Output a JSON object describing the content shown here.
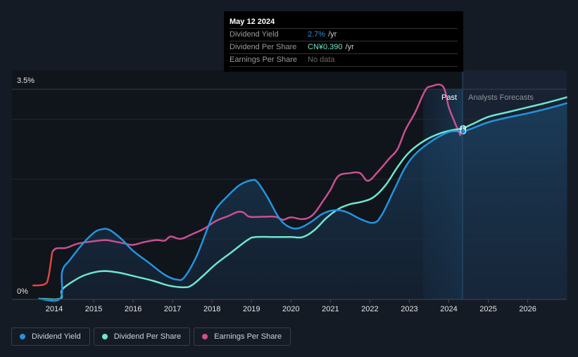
{
  "tooltip": {
    "date": "May 12 2024",
    "rows": [
      {
        "label": "Dividend Yield",
        "value": "2.7%",
        "unit": "/yr",
        "color": "#2394df"
      },
      {
        "label": "Dividend Per Share",
        "value": "CN¥0.390",
        "unit": "/yr",
        "color": "#6ee6cf"
      },
      {
        "label": "Earnings Per Share",
        "value": "No data",
        "unit": "",
        "color": "#6b6b6b"
      }
    ]
  },
  "legend": [
    {
      "label": "Dividend Yield",
      "color": "#2394df"
    },
    {
      "label": "Dividend Per Share",
      "color": "#6ee6cf"
    },
    {
      "label": "Earnings Per Share",
      "color": "#c9508f"
    }
  ],
  "chart_data": {
    "type": "line",
    "title": "",
    "xlabel": "",
    "ylabel": "",
    "x_ticks": [
      "2014",
      "2015",
      "2016",
      "2017",
      "2018",
      "2019",
      "2020",
      "2021",
      "2022",
      "2023",
      "2024",
      "2025",
      "2026"
    ],
    "y_ticks": [
      "0%",
      "3.5%"
    ],
    "ylim": [
      0,
      3.5
    ],
    "xlim": [
      2013.0,
      2027.0
    ],
    "grid": true,
    "legend_position": "bottom",
    "past_label": "Past",
    "forecast_label": "Analysts Forecasts",
    "past_region_start": 2023.35,
    "forecast_start": 2024.36,
    "series": [
      {
        "name": "Dividend Yield",
        "color": "#2394df",
        "unit": "%",
        "points": [
          [
            2013.6,
            0
          ],
          [
            2014.15,
            0
          ],
          [
            2014.2,
            0.45
          ],
          [
            2014.4,
            0.65
          ],
          [
            2014.7,
            0.9
          ],
          [
            2015.0,
            1.1
          ],
          [
            2015.2,
            1.16
          ],
          [
            2015.4,
            1.15
          ],
          [
            2015.7,
            1.0
          ],
          [
            2016.0,
            0.8
          ],
          [
            2016.4,
            0.6
          ],
          [
            2016.8,
            0.4
          ],
          [
            2017.1,
            0.32
          ],
          [
            2017.3,
            0.36
          ],
          [
            2017.6,
            0.7
          ],
          [
            2017.9,
            1.2
          ],
          [
            2018.1,
            1.5
          ],
          [
            2018.4,
            1.72
          ],
          [
            2018.7,
            1.9
          ],
          [
            2019.0,
            1.98
          ],
          [
            2019.15,
            1.95
          ],
          [
            2019.4,
            1.7
          ],
          [
            2019.7,
            1.35
          ],
          [
            2019.95,
            1.2
          ],
          [
            2020.2,
            1.18
          ],
          [
            2020.5,
            1.28
          ],
          [
            2020.8,
            1.42
          ],
          [
            2021.1,
            1.48
          ],
          [
            2021.4,
            1.45
          ],
          [
            2021.8,
            1.32
          ],
          [
            2022.1,
            1.27
          ],
          [
            2022.3,
            1.4
          ],
          [
            2022.6,
            1.8
          ],
          [
            2022.9,
            2.2
          ],
          [
            2023.2,
            2.45
          ],
          [
            2023.6,
            2.65
          ],
          [
            2023.9,
            2.76
          ],
          [
            2024.1,
            2.8
          ],
          [
            2024.36,
            2.8
          ],
          [
            2024.6,
            2.85
          ],
          [
            2025.0,
            2.95
          ],
          [
            2025.5,
            3.03
          ],
          [
            2026.0,
            3.1
          ],
          [
            2026.5,
            3.18
          ],
          [
            2027.0,
            3.27
          ]
        ]
      },
      {
        "name": "Dividend Per Share",
        "color": "#6ee6cf",
        "unit": "CN¥",
        "points": [
          [
            2013.6,
            0
          ],
          [
            2014.15,
            0
          ],
          [
            2014.2,
            0.15
          ],
          [
            2014.5,
            0.3
          ],
          [
            2014.8,
            0.4
          ],
          [
            2015.2,
            0.46
          ],
          [
            2015.6,
            0.44
          ],
          [
            2016.0,
            0.38
          ],
          [
            2016.5,
            0.3
          ],
          [
            2016.9,
            0.22
          ],
          [
            2017.3,
            0.19
          ],
          [
            2017.5,
            0.23
          ],
          [
            2017.8,
            0.4
          ],
          [
            2018.1,
            0.58
          ],
          [
            2018.5,
            0.78
          ],
          [
            2018.9,
            0.98
          ],
          [
            2019.1,
            1.03
          ],
          [
            2019.6,
            1.03
          ],
          [
            2020.0,
            1.03
          ],
          [
            2020.3,
            1.03
          ],
          [
            2020.6,
            1.15
          ],
          [
            2020.9,
            1.35
          ],
          [
            2021.2,
            1.5
          ],
          [
            2021.5,
            1.58
          ],
          [
            2021.8,
            1.62
          ],
          [
            2022.1,
            1.7
          ],
          [
            2022.4,
            1.9
          ],
          [
            2022.7,
            2.2
          ],
          [
            2023.0,
            2.45
          ],
          [
            2023.4,
            2.65
          ],
          [
            2023.8,
            2.77
          ],
          [
            2024.1,
            2.82
          ],
          [
            2024.36,
            2.85
          ],
          [
            2024.6,
            2.92
          ],
          [
            2025.0,
            3.04
          ],
          [
            2025.5,
            3.12
          ],
          [
            2026.0,
            3.2
          ],
          [
            2026.5,
            3.28
          ],
          [
            2027.0,
            3.37
          ]
        ]
      },
      {
        "name": "Earnings Per Share",
        "color": "#c9508f",
        "negative_color": "#e0453f",
        "unit": "CN¥",
        "points": [
          [
            2013.45,
            0.22
          ],
          [
            2013.75,
            0.24
          ],
          [
            2013.85,
            0.35
          ],
          [
            2013.95,
            0.78
          ],
          [
            2014.05,
            0.84
          ],
          [
            2014.3,
            0.85
          ],
          [
            2014.6,
            0.92
          ],
          [
            2015.0,
            0.96
          ],
          [
            2015.3,
            0.98
          ],
          [
            2015.5,
            0.96
          ],
          [
            2015.8,
            0.92
          ],
          [
            2016.0,
            0.9
          ],
          [
            2016.3,
            0.95
          ],
          [
            2016.6,
            0.98
          ],
          [
            2016.8,
            0.97
          ],
          [
            2016.95,
            1.04
          ],
          [
            2017.2,
            1.0
          ],
          [
            2017.5,
            1.08
          ],
          [
            2017.8,
            1.17
          ],
          [
            2018.1,
            1.3
          ],
          [
            2018.4,
            1.38
          ],
          [
            2018.65,
            1.45
          ],
          [
            2018.8,
            1.44
          ],
          [
            2018.95,
            1.37
          ],
          [
            2019.3,
            1.37
          ],
          [
            2019.6,
            1.37
          ],
          [
            2019.8,
            1.32
          ],
          [
            2020.0,
            1.36
          ],
          [
            2020.3,
            1.33
          ],
          [
            2020.55,
            1.4
          ],
          [
            2020.8,
            1.62
          ],
          [
            2021.0,
            1.82
          ],
          [
            2021.2,
            2.05
          ],
          [
            2021.5,
            2.1
          ],
          [
            2021.75,
            2.1
          ],
          [
            2021.95,
            1.97
          ],
          [
            2022.2,
            2.12
          ],
          [
            2022.5,
            2.35
          ],
          [
            2022.7,
            2.5
          ],
          [
            2022.9,
            2.82
          ],
          [
            2023.15,
            3.12
          ],
          [
            2023.4,
            3.48
          ],
          [
            2023.55,
            3.55
          ],
          [
            2023.85,
            3.55
          ],
          [
            2024.0,
            3.2
          ],
          [
            2024.15,
            2.95
          ],
          [
            2024.3,
            2.72
          ]
        ]
      }
    ],
    "markers": [
      {
        "series": "Dividend Per Share",
        "x": 2024.36,
        "y": 2.85
      },
      {
        "series": "Dividend Yield",
        "x": 2024.36,
        "y": 2.8
      }
    ]
  }
}
